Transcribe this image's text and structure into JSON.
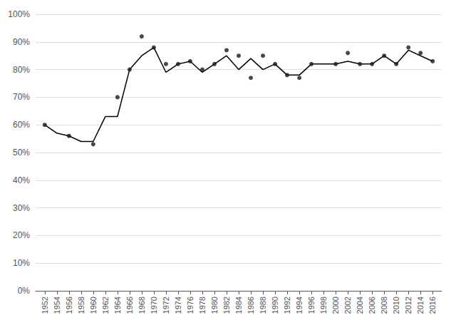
{
  "chart_data": {
    "type": "line",
    "series": [
      {
        "type": "line",
        "color": "#000000",
        "x": [
          1952,
          1954,
          1956,
          1958,
          1960,
          1962,
          1964,
          1966,
          1968,
          1970,
          1972,
          1974,
          1976,
          1978,
          1980,
          1982,
          1984,
          1986,
          1988,
          1990,
          1992,
          1994,
          1996,
          1998,
          2000,
          2002,
          2004,
          2006,
          2008,
          2010,
          2012,
          2014,
          2016
        ],
        "values": [
          60,
          57,
          56,
          54,
          54,
          63,
          63,
          80,
          85,
          88,
          79,
          82,
          83,
          79,
          82,
          85,
          80,
          84,
          80,
          82,
          78,
          78,
          82,
          82,
          82,
          83,
          82,
          82,
          85,
          82,
          87,
          85,
          83
        ]
      },
      {
        "type": "scatter",
        "color": "#1a1a1a",
        "x": [
          1952,
          1956,
          1960,
          1964,
          1966,
          1968,
          1970,
          1972,
          1974,
          1976,
          1978,
          1980,
          1982,
          1984,
          1986,
          1988,
          1990,
          1992,
          1994,
          1996,
          2000,
          2002,
          2004,
          2006,
          2008,
          2010,
          2012,
          2014,
          2016
        ],
        "values": [
          60,
          56,
          53,
          70,
          80,
          92,
          88,
          82,
          82,
          83,
          80,
          82,
          87,
          85,
          77,
          85,
          82,
          78,
          77,
          82,
          82,
          86,
          82,
          82,
          85,
          82,
          88,
          86,
          83
        ]
      }
    ],
    "xlim": [
      1950.5,
      2017.5
    ],
    "xticks": [
      1952,
      1954,
      1956,
      1958,
      1960,
      1962,
      1964,
      1966,
      1968,
      1970,
      1972,
      1974,
      1976,
      1978,
      1980,
      1982,
      1984,
      1986,
      1988,
      1990,
      1992,
      1994,
      1996,
      1998,
      2000,
      2002,
      2004,
      2006,
      2008,
      2010,
      2012,
      2014,
      2016
    ],
    "ylim": [
      0,
      100
    ],
    "yticks": [
      {
        "value": 0,
        "label": "0%"
      },
      {
        "value": 10,
        "label": "10%"
      },
      {
        "value": 20,
        "label": "20%"
      },
      {
        "value": 30,
        "label": "30%"
      },
      {
        "value": 40,
        "label": "40%"
      },
      {
        "value": 50,
        "label": "50%"
      },
      {
        "value": 60,
        "label": "60%"
      },
      {
        "value": 70,
        "label": "70%"
      },
      {
        "value": 80,
        "label": "80%"
      },
      {
        "value": 90,
        "label": "90%"
      },
      {
        "value": 100,
        "label": "100%"
      }
    ],
    "grid": true
  }
}
